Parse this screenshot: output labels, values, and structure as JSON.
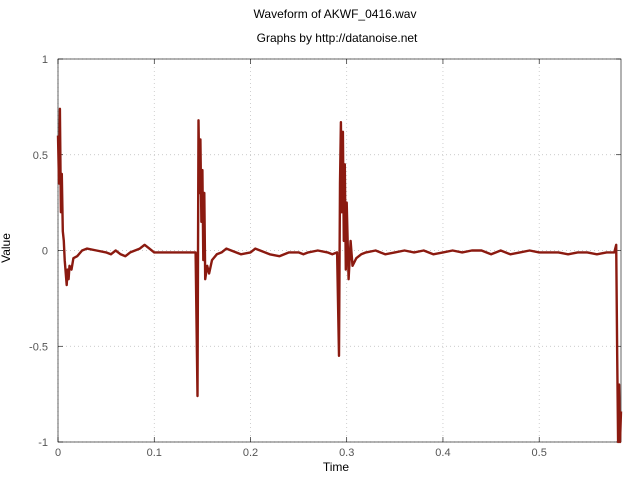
{
  "chart_data": {
    "type": "line",
    "title": "Waveform of AKWF_0416.wav",
    "subtitle": "Graphs by http://datanoise.net",
    "xlabel": "Time",
    "ylabel": "Value",
    "xlim": [
      0,
      0.585
    ],
    "ylim": [
      -1,
      1
    ],
    "xticks": [
      0,
      0.1,
      0.2,
      0.3,
      0.4,
      0.5
    ],
    "xtick_labels": [
      "0",
      "0.1",
      "0.2",
      "0.3",
      "0.4",
      "0.5"
    ],
    "yticks": [
      -1,
      -0.5,
      0,
      0.5,
      1
    ],
    "ytick_labels": [
      "-1",
      "-0.5",
      "0",
      "0.5",
      "1"
    ],
    "grid": true,
    "series": [
      {
        "color": "#8b1a10",
        "x": [
          0,
          0.001,
          0.002,
          0.003,
          0.004,
          0.005,
          0.006,
          0.007,
          0.009,
          0.01,
          0.011,
          0.012,
          0.014,
          0.016,
          0.02,
          0.025,
          0.03,
          0.04,
          0.05,
          0.055,
          0.06,
          0.065,
          0.07,
          0.075,
          0.08,
          0.085,
          0.09,
          0.095,
          0.1,
          0.11,
          0.12,
          0.13,
          0.138,
          0.143,
          0.145,
          0.146,
          0.147,
          0.148,
          0.149,
          0.15,
          0.151,
          0.152,
          0.153,
          0.155,
          0.157,
          0.16,
          0.165,
          0.17,
          0.175,
          0.18,
          0.19,
          0.2,
          0.205,
          0.21,
          0.215,
          0.22,
          0.23,
          0.24,
          0.25,
          0.255,
          0.26,
          0.27,
          0.28,
          0.285,
          0.29,
          0.292,
          0.293,
          0.294,
          0.295,
          0.296,
          0.297,
          0.298,
          0.299,
          0.3,
          0.302,
          0.304,
          0.306,
          0.31,
          0.315,
          0.32,
          0.33,
          0.34,
          0.35,
          0.36,
          0.37,
          0.38,
          0.39,
          0.4,
          0.41,
          0.42,
          0.43,
          0.44,
          0.45,
          0.46,
          0.47,
          0.48,
          0.49,
          0.5,
          0.51,
          0.52,
          0.53,
          0.54,
          0.55,
          0.56,
          0.57,
          0.578,
          0.58,
          0.581,
          0.582,
          0.583,
          0.584,
          0.585
        ],
        "y": [
          0.6,
          0.35,
          0.74,
          0.2,
          0.4,
          0.1,
          0.05,
          -0.05,
          -0.18,
          -0.1,
          -0.15,
          -0.08,
          -0.1,
          -0.04,
          -0.03,
          0.0,
          0.01,
          0.0,
          -0.01,
          -0.02,
          0.0,
          -0.02,
          -0.03,
          -0.01,
          0.0,
          0.01,
          0.03,
          0.01,
          -0.01,
          -0.01,
          -0.01,
          -0.01,
          -0.01,
          -0.01,
          -0.76,
          0.68,
          0.3,
          0.58,
          0.15,
          0.42,
          -0.05,
          0.3,
          -0.15,
          -0.08,
          -0.12,
          -0.05,
          -0.02,
          -0.01,
          0.01,
          0.0,
          -0.02,
          -0.01,
          0.01,
          0.0,
          -0.01,
          -0.02,
          -0.03,
          -0.01,
          -0.01,
          -0.02,
          -0.01,
          0.0,
          -0.01,
          -0.02,
          -0.01,
          -0.55,
          0.35,
          0.67,
          0.2,
          0.62,
          0.05,
          0.45,
          -0.1,
          0.25,
          -0.15,
          0.05,
          -0.08,
          -0.04,
          -0.02,
          -0.01,
          0.0,
          -0.02,
          -0.01,
          0.0,
          -0.01,
          0.0,
          -0.02,
          -0.01,
          0.0,
          -0.01,
          0.0,
          0.0,
          -0.02,
          0.0,
          -0.02,
          -0.01,
          0.0,
          -0.01,
          -0.01,
          -0.01,
          -0.02,
          -0.01,
          -0.01,
          -0.02,
          -0.01,
          -0.01,
          0.03,
          -0.55,
          -1.0,
          -0.7,
          -1.0,
          -0.84
        ]
      }
    ]
  }
}
